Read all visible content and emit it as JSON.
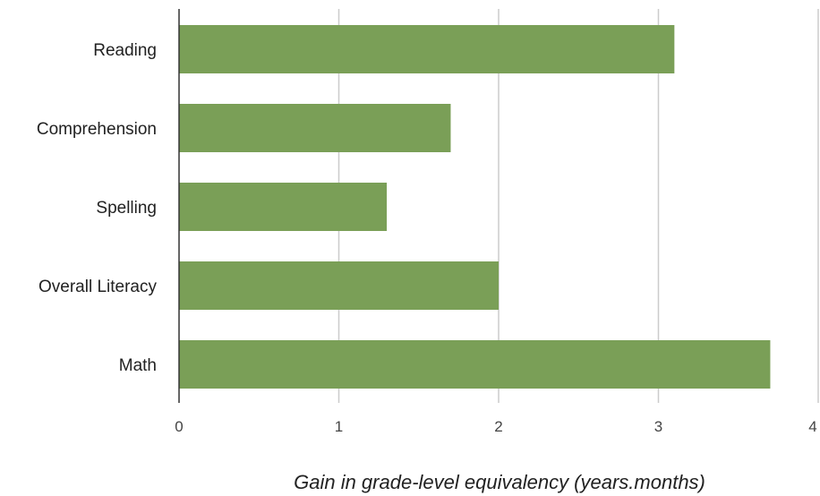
{
  "chart_data": {
    "type": "bar",
    "orientation": "horizontal",
    "categories": [
      "Reading",
      "Comprehension",
      "Spelling",
      "Overall Literacy",
      "Math"
    ],
    "values": [
      3.1,
      1.7,
      1.3,
      2.0,
      3.7
    ],
    "xlabel": "Gain in grade-level equivalency (years.months)",
    "ylabel": "",
    "xlim": [
      0,
      4
    ],
    "xticks": [
      "0",
      "1",
      "2",
      "3",
      "4"
    ],
    "grid": "vertical",
    "bar_color": "#7a9f57"
  }
}
